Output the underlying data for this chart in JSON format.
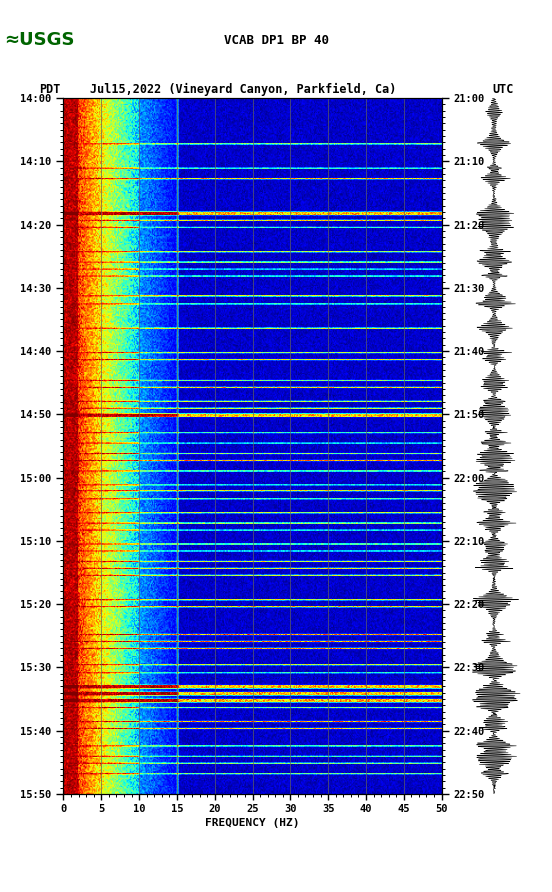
{
  "title_line1": "VCAB DP1 BP 40",
  "title_line2_left": "PDT",
  "title_line2_mid": "Jul15,2022 (Vineyard Canyon, Parkfield, Ca)",
  "title_line2_right": "UTC",
  "xlabel": "FREQUENCY (HZ)",
  "freq_min": 0,
  "freq_max": 50,
  "freq_ticks": [
    0,
    5,
    10,
    15,
    20,
    25,
    30,
    35,
    40,
    45,
    50
  ],
  "time_left_labels": [
    "14:00",
    "14:10",
    "14:20",
    "14:30",
    "14:40",
    "14:50",
    "15:00",
    "15:10",
    "15:20",
    "15:30",
    "15:40",
    "15:50"
  ],
  "time_right_labels": [
    "21:00",
    "21:10",
    "21:20",
    "21:30",
    "21:40",
    "21:50",
    "22:00",
    "22:10",
    "22:20",
    "22:30",
    "22:40",
    "22:50"
  ],
  "background_color": "#ffffff",
  "grid_color": "#606060",
  "colormap": "jet",
  "figsize": [
    5.52,
    8.92
  ],
  "dpi": 100,
  "vgrid_freqs": [
    5,
    10,
    15,
    20,
    25,
    30,
    35,
    40,
    45
  ]
}
